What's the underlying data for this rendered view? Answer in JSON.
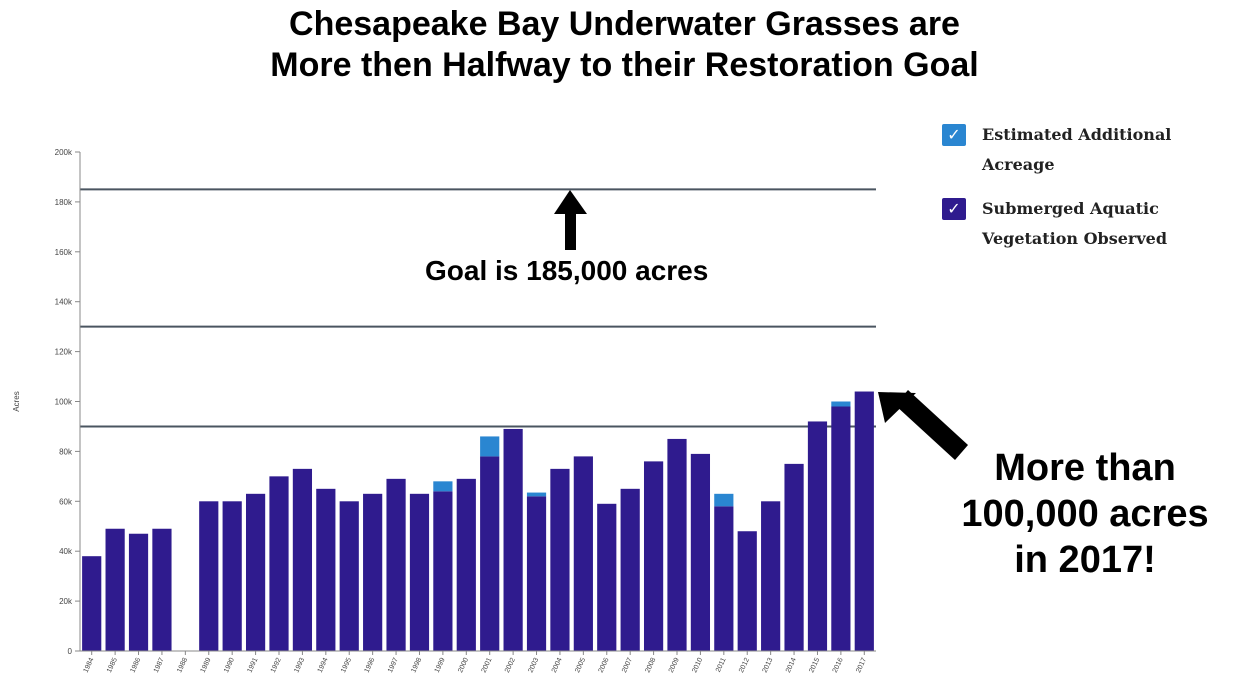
{
  "title": {
    "line1": "Chesapeake Bay Underwater Grasses are",
    "line2": "More then Halfway to their Restoration Goal"
  },
  "legend": {
    "items": [
      {
        "label": "Estimated Additional Acreage",
        "color": "#2a86d1",
        "icon": "checkmark-icon"
      },
      {
        "label": "Submerged Aquatic Vegetation Observed",
        "color": "#2f1b8e",
        "icon": "checkmark-icon"
      }
    ]
  },
  "annotations": {
    "goal": "Goal is 185,000 acres",
    "more_line1": "More than",
    "more_line2": "100,000 acres",
    "more_line3": "in 2017!"
  },
  "colors": {
    "observed": "#2f1b8e",
    "estimated": "#2a86d1",
    "reference_line": "#4a5560",
    "arrow": "#000000"
  },
  "chart_data": {
    "type": "bar",
    "stacked": true,
    "title": "Chesapeake Bay Underwater Grasses are More then Halfway to their Restoration Goal",
    "ylabel": "Acres",
    "xlabel": "",
    "ylim": [
      0,
      200000
    ],
    "yticks": [
      0,
      20000,
      40000,
      60000,
      80000,
      100000,
      120000,
      140000,
      160000,
      180000,
      200000
    ],
    "ytick_labels": [
      "0",
      "20k",
      "40k",
      "60k",
      "80k",
      "100k",
      "120k",
      "140k",
      "160k",
      "180k",
      "200k"
    ],
    "categories": [
      "1984",
      "1985",
      "1986",
      "1987",
      "1988",
      "1989",
      "1990",
      "1991",
      "1992",
      "1993",
      "1994",
      "1995",
      "1996",
      "1997",
      "1998",
      "1999",
      "2000",
      "2001",
      "2002",
      "2003",
      "2004",
      "2005",
      "2006",
      "2007",
      "2008",
      "2009",
      "2010",
      "2011",
      "2012",
      "2013",
      "2014",
      "2015",
      "2016",
      "2017"
    ],
    "series": [
      {
        "name": "Submerged Aquatic Vegetation Observed",
        "values": [
          38000,
          49000,
          47000,
          49000,
          0,
          60000,
          60000,
          63000,
          70000,
          73000,
          65000,
          60000,
          63000,
          69000,
          63000,
          64000,
          69000,
          78000,
          89000,
          62000,
          73000,
          78000,
          59000,
          65000,
          76000,
          85000,
          79000,
          58000,
          48000,
          60000,
          75000,
          92000,
          98000,
          104000
        ]
      },
      {
        "name": "Estimated Additional Acreage",
        "values": [
          0,
          0,
          0,
          0,
          0,
          0,
          0,
          0,
          0,
          0,
          0,
          0,
          0,
          0,
          0,
          4000,
          0,
          8000,
          0,
          1500,
          0,
          0,
          0,
          0,
          0,
          0,
          0,
          5000,
          0,
          0,
          0,
          0,
          2000,
          0
        ]
      }
    ],
    "reference_lines": [
      185000,
      130000,
      90000
    ],
    "legend_position": "top-right",
    "grid": false
  }
}
